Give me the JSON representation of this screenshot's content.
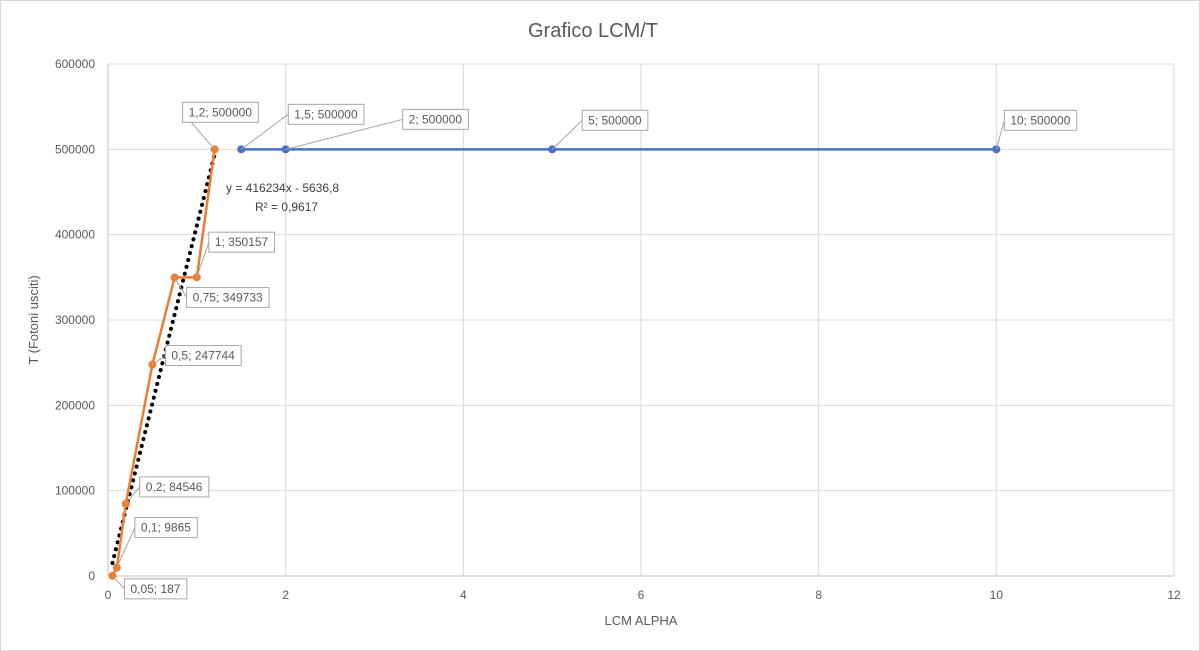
{
  "chart_data": {
    "type": "scatter",
    "title": "Grafico LCM/T",
    "xlabel": "LCM ALPHA",
    "ylabel": "T (Fotoni usciti)",
    "xlim": [
      0,
      12
    ],
    "ylim": [
      0,
      600000
    ],
    "x_ticks": [
      "0",
      "2",
      "4",
      "6",
      "8",
      "10",
      "12"
    ],
    "y_ticks": [
      "0",
      "100000",
      "200000",
      "300000",
      "400000",
      "500000",
      "600000"
    ],
    "grid": true,
    "legend": "none",
    "series": [
      {
        "color": "#ED7D31",
        "points": [
          {
            "x": 0.05,
            "y": 187,
            "label": "0,05; 187"
          },
          {
            "x": 0.1,
            "y": 9865,
            "label": "0,1; 9865"
          },
          {
            "x": 0.2,
            "y": 84546,
            "label": "0,2; 84546"
          },
          {
            "x": 0.5,
            "y": 247744,
            "label": "0,5; 247744"
          },
          {
            "x": 0.75,
            "y": 349733,
            "label": "0,75; 349733"
          },
          {
            "x": 1,
            "y": 350157,
            "label": "1; 350157"
          },
          {
            "x": 1.2,
            "y": 500000,
            "label": "1,2; 500000"
          }
        ]
      },
      {
        "color": "#4472C4",
        "points": [
          {
            "x": 1.5,
            "y": 500000,
            "label": "1,5; 500000"
          },
          {
            "x": 2,
            "y": 500000,
            "label": "2; 500000"
          },
          {
            "x": 5,
            "y": 500000,
            "label": "5; 500000"
          },
          {
            "x": 10,
            "y": 500000,
            "label": "10; 500000"
          }
        ]
      }
    ],
    "trendline": {
      "type": "linear",
      "slope": 416234,
      "intercept": -5636.8,
      "equation": "y = 416234x - 5636,8",
      "r2": "R² = 0,9617",
      "style": "dotted",
      "color": "#000000",
      "x_range": [
        0.05,
        1.2
      ]
    }
  }
}
